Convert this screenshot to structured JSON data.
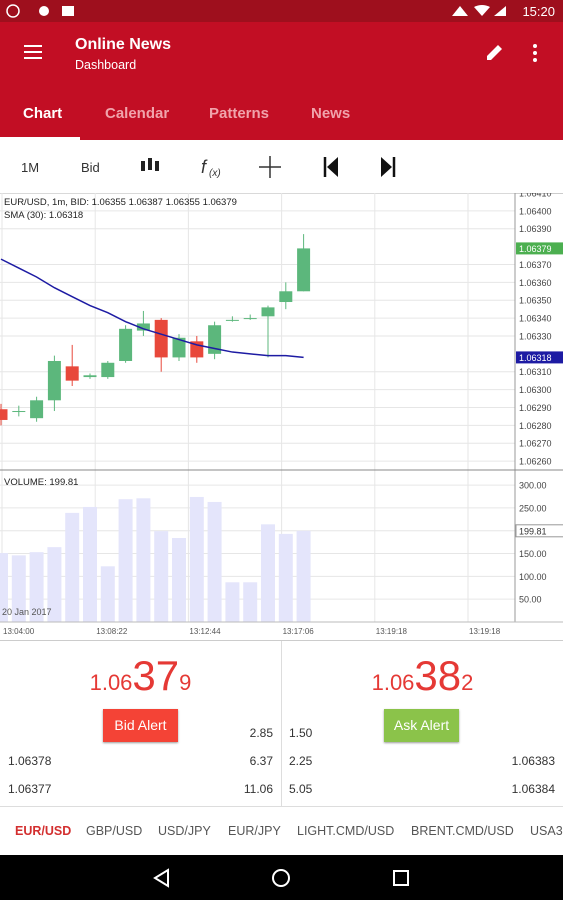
{
  "status_bar": {
    "time": "15:20"
  },
  "app_bar": {
    "title": "Online News",
    "subtitle": "Dashboard"
  },
  "tabs": [
    "Chart",
    "Calendar",
    "Patterns",
    "News"
  ],
  "toolbar": {
    "timeframe": "1M",
    "price_type": "Bid"
  },
  "chart_data": {
    "type": "candlestick",
    "title": "EUR/USD, 1m, BID: 1.06355 1.06387 1.06355 1.06379",
    "up_color": "#5cb77c",
    "down_color": "#e8483b",
    "open": [
      1.06289,
      1.06288,
      1.06284,
      1.06294,
      1.06313,
      1.06307,
      1.06307,
      1.06316,
      1.06333,
      1.06339,
      1.06318,
      1.06327,
      1.0632,
      1.06339,
      1.0634,
      1.06341,
      1.06349,
      1.06355
    ],
    "high": [
      1.06292,
      1.06291,
      1.06296,
      1.06319,
      1.06325,
      1.06309,
      1.06316,
      1.06336,
      1.06344,
      1.0634,
      1.06331,
      1.0633,
      1.06338,
      1.06341,
      1.06342,
      1.06347,
      1.0636,
      1.06387
    ],
    "low": [
      1.0628,
      1.06285,
      1.06282,
      1.06288,
      1.06302,
      1.06306,
      1.06306,
      1.06315,
      1.0633,
      1.0631,
      1.06316,
      1.06315,
      1.06317,
      1.06338,
      1.06339,
      1.06318,
      1.06345,
      1.06355
    ],
    "close": [
      1.06283,
      1.06288,
      1.06294,
      1.06316,
      1.06305,
      1.06308,
      1.06315,
      1.06334,
      1.06337,
      1.06318,
      1.06329,
      1.06318,
      1.06336,
      1.06339,
      1.0634,
      1.06346,
      1.06355,
      1.06379
    ],
    "sma": {
      "name": "SMA (30): 1.06318",
      "color": "#1d1ba3",
      "values": [
        1.06373,
        1.06368,
        1.06363,
        1.06357,
        1.06352,
        1.06347,
        1.06343,
        1.06338,
        1.06334,
        1.06331,
        1.06328,
        1.06325,
        1.06323,
        1.06321,
        1.0632,
        1.06319,
        1.06319,
        1.06318
      ],
      "last": {
        "value": 1.06318,
        "label": "1.06318"
      }
    },
    "last_price": {
      "value": 1.06379,
      "label": "1.06379",
      "color": "#4caf50"
    },
    "ylim": [
      1.06255,
      1.0641
    ],
    "yticks": [
      {
        "value": 1.0641,
        "label": "1.06410"
      },
      {
        "value": 1.064,
        "label": "1.06400"
      },
      {
        "value": 1.0639,
        "label": "1.06390"
      },
      {
        "value": 1.0637,
        "label": "1.06370"
      },
      {
        "value": 1.0636,
        "label": "1.06360"
      },
      {
        "value": 1.0635,
        "label": "1.06350"
      },
      {
        "value": 1.0634,
        "label": "1.06340"
      },
      {
        "value": 1.0633,
        "label": "1.06330"
      },
      {
        "value": 1.0631,
        "label": "1.06310"
      },
      {
        "value": 1.063,
        "label": "1.06300"
      },
      {
        "value": 1.0629,
        "label": "1.06290"
      },
      {
        "value": 1.0628,
        "label": "1.06280"
      },
      {
        "value": 1.0627,
        "label": "1.06270"
      },
      {
        "value": 1.0626,
        "label": "1.06260"
      }
    ],
    "volume": {
      "title": "VOLUME: 199.81",
      "color": "#e4e5fb",
      "values": [
        151,
        146,
        153,
        164,
        239,
        252,
        122,
        269,
        271,
        199,
        184,
        274,
        263,
        87,
        87,
        214,
        193,
        199.81
      ],
      "ylim": [
        0,
        333
      ],
      "yticks": [
        {
          "value": 300,
          "label": "300.00"
        },
        {
          "value": 250,
          "label": "250.00"
        },
        {
          "value": 200,
          "label": "200.00"
        },
        {
          "value": 150,
          "label": "150.00"
        },
        {
          "value": 100,
          "label": "100.00"
        },
        {
          "value": 50,
          "label": "50.00"
        }
      ],
      "last": {
        "value": 199.81,
        "label": "199.81"
      }
    },
    "date_label": "20 Jan 2017",
    "xticks": [
      "13:04:00",
      "13:08:22",
      "13:12:44",
      "13:17:06",
      "13:19:18",
      "13:19:18"
    ]
  },
  "quotes": {
    "bid": {
      "prefix": "1.06",
      "big": "37",
      "suffix": "9",
      "button": "Bid Alert"
    },
    "ask": {
      "prefix": "1.06",
      "big": "38",
      "suffix": "2",
      "button": "Ask Alert"
    }
  },
  "depth": {
    "bid": [
      {
        "volume": "2.85"
      },
      {
        "price": "1.06378",
        "volume": "6.37"
      },
      {
        "price": "1.06377",
        "volume": "11.06"
      }
    ],
    "ask": [
      {
        "volume": "1.50"
      },
      {
        "price": "1.06383",
        "volume": "2.25"
      },
      {
        "price": "1.06384",
        "volume": "5.05"
      }
    ]
  },
  "symbols": [
    "EUR/USD",
    "GBP/USD",
    "USD/JPY",
    "EUR/JPY",
    "LIGHT.CMD/USD",
    "BRENT.CMD/USD",
    "USA3"
  ]
}
